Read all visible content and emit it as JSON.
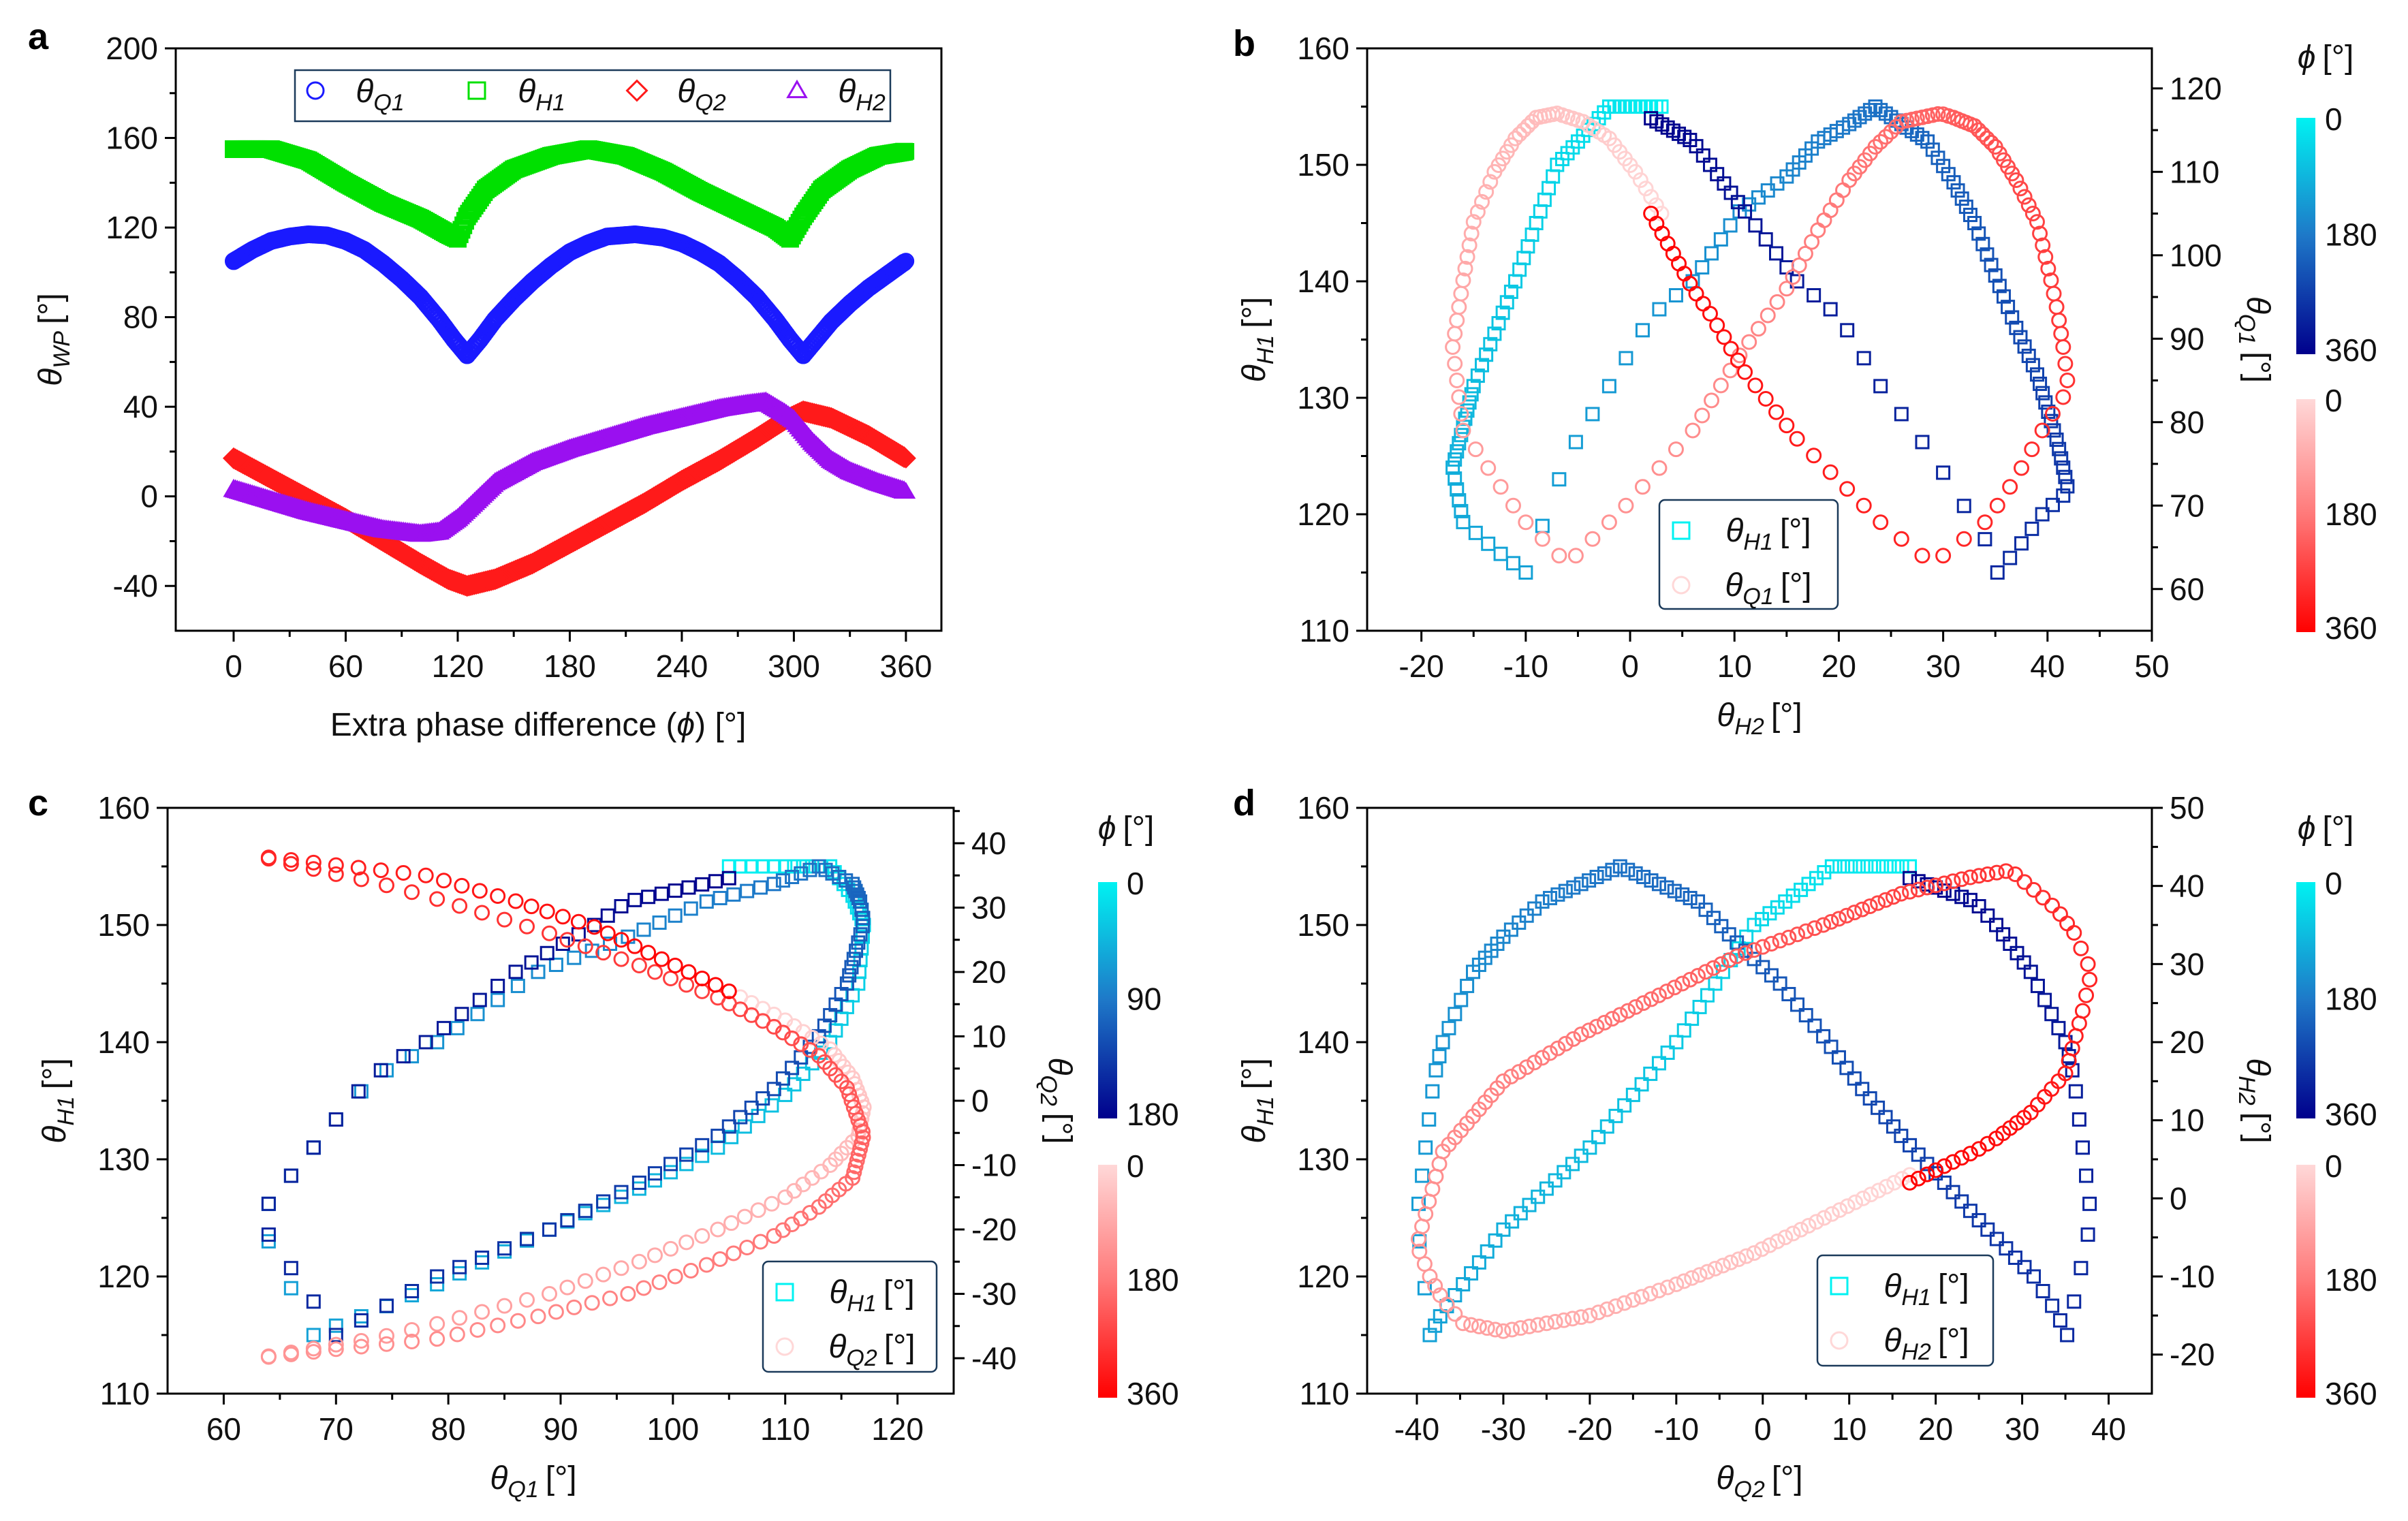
{
  "colors": {
    "Q1": "#1a1aff",
    "H1": "#00e000",
    "Q2": "#ff1a1a",
    "H2": "#9a10f0",
    "blue_map": [
      "#00f2f2",
      "#1e78c8",
      "#00008c"
    ],
    "red_map": [
      "#ffd8d8",
      "#ff7878",
      "#ff0000"
    ]
  },
  "chart_data": [
    {
      "panel": "a",
      "type": "scatter",
      "xlabel": {
        "text": "Extra phase difference (",
        "sym": "ϕ",
        "tail": ") [°]"
      },
      "ylabel": {
        "sym": "θ",
        "sub": "WP",
        "unit": "[°]"
      },
      "xlim": [
        -31,
        379
      ],
      "ylim": [
        -60,
        200
      ],
      "xticks": [
        0,
        60,
        120,
        180,
        240,
        300,
        360
      ],
      "yticks": [
        200,
        160,
        120,
        80,
        40,
        0,
        -40
      ],
      "legend": {
        "placement": "top",
        "entries": [
          {
            "key": "Q1",
            "marker": "circle",
            "sym": "θ",
            "sub": "Q1"
          },
          {
            "key": "H1",
            "marker": "square",
            "sym": "θ",
            "sub": "H1"
          },
          {
            "key": "Q2",
            "marker": "diamond",
            "sym": "θ",
            "sub": "Q2"
          },
          {
            "key": "H2",
            "marker": "triangle",
            "sym": "θ",
            "sub": "H2"
          }
        ]
      },
      "series": {
        "Q1": {
          "phi": [
            0,
            10,
            20,
            30,
            40,
            50,
            60,
            70,
            80,
            90,
            100,
            110,
            118,
            125,
            132,
            140,
            150,
            160,
            170,
            180,
            190,
            200,
            215,
            230,
            240,
            250,
            260,
            270,
            280,
            290,
            298,
            305,
            312,
            320,
            330,
            340,
            350,
            360
          ],
          "values": [
            105,
            110,
            114,
            116,
            117,
            116.5,
            114,
            110,
            104,
            97,
            89,
            79,
            70,
            63,
            70,
            79,
            88,
            96,
            103,
            109,
            113,
            116,
            117,
            115.5,
            113,
            109,
            104,
            97,
            89,
            79,
            70,
            63,
            70,
            78,
            86,
            93,
            99,
            105
          ]
        },
        "H1": {
          "phi": [
            0,
            20,
            40,
            60,
            80,
            100,
            115,
            120,
            125,
            135,
            150,
            170,
            190,
            210,
            230,
            250,
            270,
            290,
            298,
            305,
            315,
            330,
            345,
            360
          ],
          "values": [
            155,
            155,
            150,
            140,
            131,
            124,
            117,
            115,
            125,
            137,
            146,
            152,
            155,
            152,
            145,
            136,
            128,
            120,
            115,
            125,
            137,
            146,
            152,
            154
          ]
        },
        "Q2": {
          "phi": [
            0,
            20,
            40,
            60,
            80,
            100,
            115,
            125,
            140,
            160,
            180,
            200,
            220,
            240,
            260,
            280,
            295,
            305,
            320,
            340,
            360
          ],
          "values": [
            17,
            8,
            -1,
            -10,
            -20,
            -30,
            -37,
            -40,
            -37,
            -30,
            -21,
            -12,
            -3,
            7,
            16,
            26,
            34,
            38,
            35,
            27,
            17
          ]
        },
        "H2": {
          "phi": [
            0,
            20,
            40,
            60,
            80,
            100,
            110,
            120,
            130,
            140,
            160,
            180,
            200,
            220,
            240,
            260,
            275,
            285,
            295,
            300,
            310,
            320,
            330,
            345,
            360
          ],
          "values": [
            3,
            -2,
            -7,
            -11,
            -15,
            -17,
            -16,
            -10,
            -2,
            6,
            15,
            21,
            26,
            31,
            35,
            39,
            41,
            42,
            37,
            34,
            24,
            16,
            11,
            6,
            2
          ]
        }
      }
    },
    {
      "panel": "b",
      "type": "scatter",
      "x_series": "H2",
      "y_left_series": "H1",
      "y_right_series": "Q1",
      "xlabel": {
        "sym": "θ",
        "sub": "H2",
        "unit": "[°]"
      },
      "ylabel": {
        "sym": "θ",
        "sub": "H1",
        "unit": "[°]"
      },
      "y2label": {
        "sym": "θ",
        "sub": "Q1",
        "unit": "[°]"
      },
      "xlim": [
        -25.2,
        50
      ],
      "ylim": [
        110,
        160
      ],
      "y2lim": [
        55,
        124.8
      ],
      "xticks": [
        -20,
        -10,
        0,
        10,
        20,
        30,
        40,
        50
      ],
      "yticks": [
        110,
        120,
        130,
        140,
        150,
        160
      ],
      "y2ticks": [
        60,
        70,
        80,
        90,
        100,
        110,
        120
      ],
      "colorbar": {
        "title_sym": "ϕ",
        "title_unit": "[°]",
        "top_labels": [
          "0",
          "180",
          "360"
        ],
        "bottom_labels": [
          "0",
          "180",
          "360"
        ]
      },
      "legend": [
        {
          "marker": "square",
          "sym": "θ",
          "sub": "H1",
          "unit": "[°]"
        },
        {
          "marker": "circle",
          "sym": "θ",
          "sub": "Q1",
          "unit": "[°]"
        }
      ]
    },
    {
      "panel": "c",
      "type": "scatter",
      "x_series": "Q1",
      "y_left_series": "H1",
      "y_right_series": "Q2",
      "xlabel": {
        "sym": "θ",
        "sub": "Q1",
        "unit": "[°]"
      },
      "ylabel": {
        "sym": "θ",
        "sub": "H1",
        "unit": "[°]"
      },
      "y2label": {
        "sym": "θ",
        "sub": "Q2",
        "unit": "[°]"
      },
      "xlim": [
        55,
        125
      ],
      "ylim": [
        110,
        160
      ],
      "y2lim": [
        -45.5,
        45.5
      ],
      "xticks": [
        60,
        70,
        80,
        90,
        100,
        110,
        120
      ],
      "yticks": [
        110,
        120,
        130,
        140,
        150,
        160
      ],
      "y2ticks": [
        -40,
        -30,
        -20,
        -10,
        0,
        10,
        20,
        30,
        40
      ],
      "colorbar": {
        "title_sym": "ϕ",
        "title_unit": "[°]",
        "top_labels": [
          "0",
          "90",
          "180"
        ],
        "bottom_labels": [
          "0",
          "180",
          "360"
        ]
      },
      "legend": [
        {
          "marker": "square",
          "sym": "θ",
          "sub": "H1",
          "unit": "[°]"
        },
        {
          "marker": "circle",
          "sym": "θ",
          "sub": "Q2",
          "unit": "[°]"
        }
      ]
    },
    {
      "panel": "d",
      "type": "scatter",
      "x_series": "Q2",
      "y_left_series": "H1",
      "y_right_series": "H2",
      "xlabel": {
        "sym": "θ",
        "sub": "Q2",
        "unit": "[°]"
      },
      "ylabel": {
        "sym": "θ",
        "sub": "H1",
        "unit": "[°]"
      },
      "y2label": {
        "sym": "θ",
        "sub": "H2",
        "unit": "[°]"
      },
      "xlim": [
        -45.75,
        45
      ],
      "ylim": [
        110,
        160
      ],
      "y2lim": [
        -25,
        50
      ],
      "xticks": [
        -40,
        -30,
        -20,
        -10,
        0,
        10,
        20,
        30,
        40
      ],
      "yticks": [
        110,
        120,
        130,
        140,
        150,
        160
      ],
      "y2ticks": [
        -20,
        -10,
        0,
        10,
        20,
        30,
        40,
        50
      ],
      "colorbar": {
        "title_sym": "ϕ",
        "title_unit": "[°]",
        "top_labels": [
          "0",
          "180",
          "360"
        ],
        "bottom_labels": [
          "0",
          "180",
          "360"
        ]
      },
      "legend": [
        {
          "marker": "square",
          "sym": "θ",
          "sub": "H1",
          "unit": "[°]"
        },
        {
          "marker": "circle",
          "sym": "θ",
          "sub": "H2",
          "unit": "[°]"
        }
      ]
    }
  ]
}
